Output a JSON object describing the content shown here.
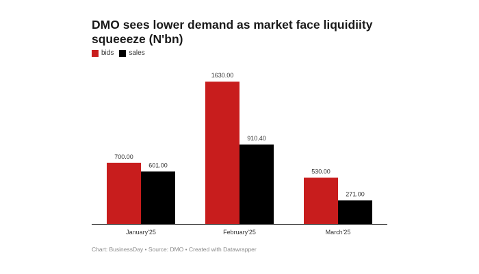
{
  "chart_data": {
    "type": "bar",
    "title": "DMO sees lower demand as market face liquidiity squeeeze (N'bn)",
    "categories": [
      "January'25",
      "February'25",
      "March'25"
    ],
    "series": [
      {
        "name": "bids",
        "color": "#c81d1d",
        "values": [
          700.0,
          1630.0,
          530.0
        ],
        "labels": [
          "700.00",
          "1630.00",
          "530.00"
        ]
      },
      {
        "name": "sales",
        "color": "#000000",
        "values": [
          601.0,
          910.4,
          271.0
        ],
        "labels": [
          "601.00",
          "910.40",
          "271.00"
        ]
      }
    ],
    "xlabel": "",
    "ylabel": "",
    "ylim": [
      0,
      1820
    ],
    "grid": false,
    "legend": "top-left",
    "source": "Chart: BusinessDay • Source: DMO • Created with Datawrapper"
  }
}
